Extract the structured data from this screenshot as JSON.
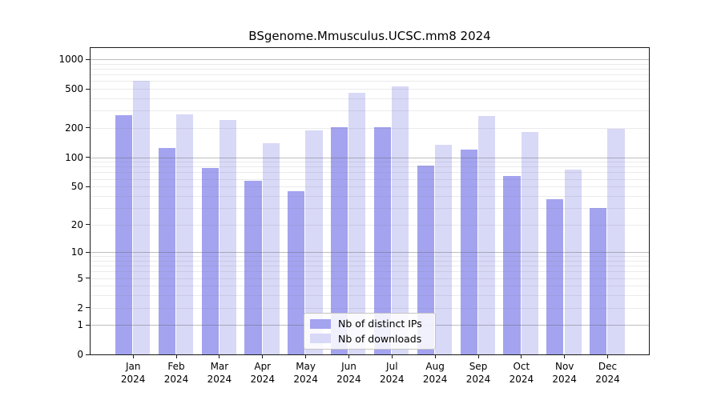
{
  "chart_data": {
    "type": "bar",
    "title": "BSgenome.Mmusculus.UCSC.mm8 2024",
    "categories": [
      "Jan",
      "Feb",
      "Mar",
      "Apr",
      "May",
      "Jun",
      "Jul",
      "Aug",
      "Sep",
      "Oct",
      "Nov",
      "Dec"
    ],
    "year_label": "2024",
    "series": [
      {
        "name": "Nb of distinct IPs",
        "color": "#a3a3f0",
        "values": [
          270,
          125,
          77,
          57,
          45,
          205,
          205,
          82,
          119,
          64,
          37,
          30
        ]
      },
      {
        "name": "Nb of downloads",
        "color": "#d8d8f7",
        "values": [
          608,
          273,
          241,
          140,
          188,
          459,
          530,
          135,
          266,
          182,
          75,
          196
        ]
      }
    ],
    "yticks": [
      0,
      1,
      2,
      5,
      10,
      20,
      50,
      100,
      200,
      500,
      1000
    ],
    "yscale": "log1p",
    "ylim": [
      0,
      1300
    ],
    "xlabel": "",
    "ylabel": "",
    "grid": "on",
    "legend_position": "lower-center"
  }
}
